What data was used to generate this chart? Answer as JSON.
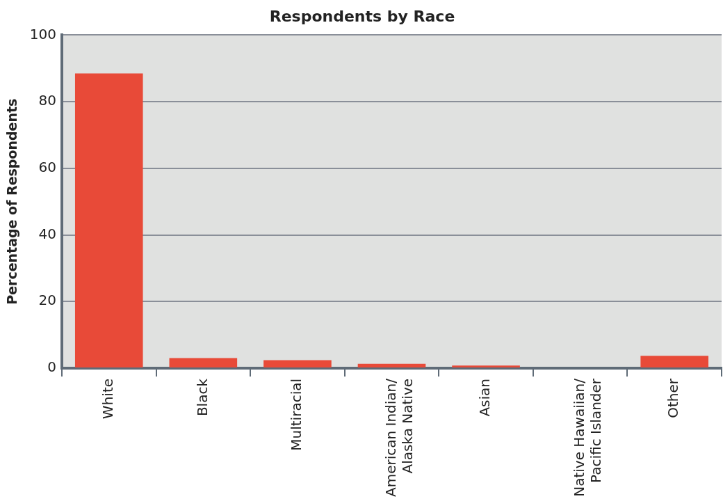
{
  "chart_data": {
    "type": "bar",
    "title": "Respondents by Race",
    "ylabel": "Percentage of Respondents",
    "categories": [
      "White",
      "Black",
      "Multiracial",
      "American Indian/\nAlaska Native",
      "Asian",
      "Native Hawaiian/\nPacific Islander",
      "Other"
    ],
    "values": [
      88.5,
      3.0,
      2.4,
      1.3,
      0.8,
      0,
      3.7
    ],
    "color": "#e84a38",
    "ylim": [
      0,
      100
    ],
    "yticks": [
      0,
      20,
      40,
      60,
      80,
      100
    ],
    "grid": "y",
    "legend": false
  }
}
